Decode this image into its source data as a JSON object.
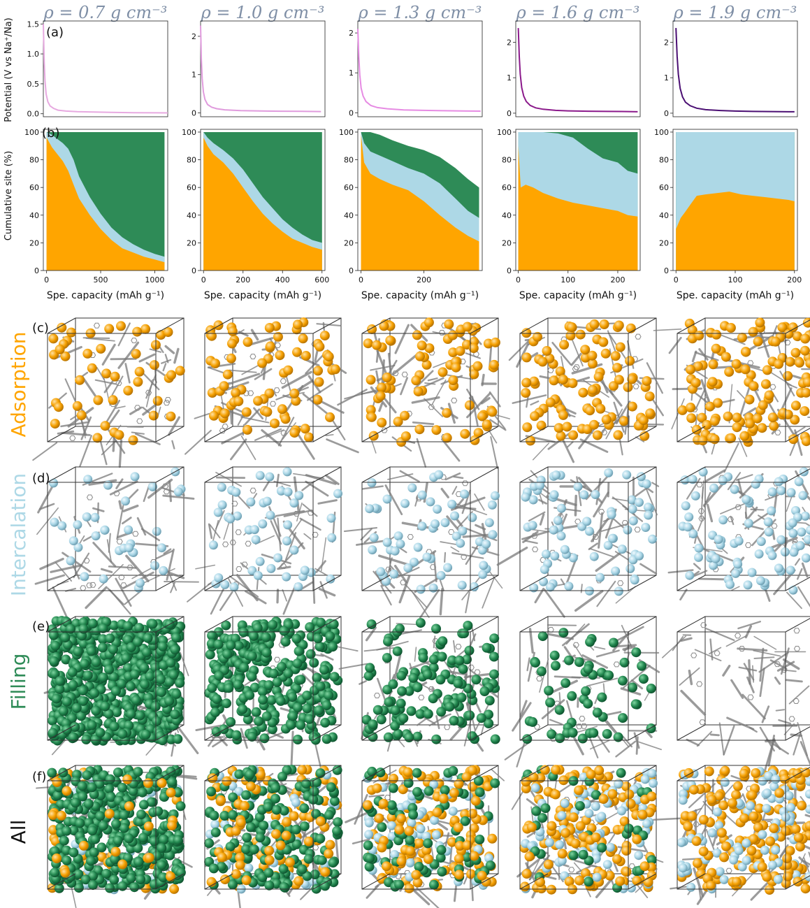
{
  "figure": {
    "density_labels": [
      "ρ = 0.7 g cm⁻³",
      "ρ = 1.0 g cm⁻³",
      "ρ = 1.3 g cm⁻³",
      "ρ = 1.6 g cm⁻³",
      "ρ = 1.9 g cm⁻³"
    ],
    "panel_letters": [
      "(a)",
      "(b)",
      "(c)",
      "(d)",
      "(e)",
      "(f)"
    ],
    "row_labels": [
      "Adsorption",
      "Intercalation",
      "Filling",
      "All"
    ],
    "colors": {
      "adsorption": "#FFA500",
      "intercalation": "#ADD8E6",
      "filling": "#2E8B57",
      "carbon": "#7a7a7a",
      "title": "#7F8FA6",
      "axis": "#222222"
    },
    "potential_colors": [
      "#E7A9E0",
      "#E09BDD",
      "#E68BE3",
      "#8B1A8B",
      "#4B0F73"
    ]
  },
  "chart_data": [
    {
      "type": "line",
      "panel": "(a)",
      "density": "0.7",
      "ylabel": "Potential (V vs Na⁺/Na)",
      "xlim": [
        0,
        1100
      ],
      "ylim": [
        -0.05,
        1.55
      ],
      "yticks": [
        "0.0",
        "0.5",
        "1.0",
        "1.5"
      ],
      "ytick_values": [
        0,
        0.5,
        1.0,
        1.5
      ],
      "x": [
        0,
        8,
        15,
        25,
        40,
        60,
        90,
        130,
        200,
        300,
        450,
        600,
        800,
        1000,
        1100
      ],
      "y": [
        1.5,
        0.85,
        0.55,
        0.33,
        0.2,
        0.13,
        0.09,
        0.06,
        0.045,
        0.035,
        0.028,
        0.022,
        0.018,
        0.015,
        0.014
      ]
    },
    {
      "type": "line",
      "panel": "(a)",
      "density": "1.0",
      "xlim": [
        0,
        620
      ],
      "ylim": [
        -0.1,
        2.4
      ],
      "yticks": [
        "0",
        "1",
        "2"
      ],
      "ytick_values": [
        0,
        1,
        2
      ],
      "x": [
        0,
        4,
        8,
        14,
        22,
        35,
        55,
        80,
        120,
        200,
        300,
        400,
        500,
        600
      ],
      "y": [
        2.28,
        1.4,
        0.9,
        0.55,
        0.35,
        0.22,
        0.15,
        0.11,
        0.08,
        0.06,
        0.05,
        0.045,
        0.04,
        0.035
      ]
    },
    {
      "type": "line",
      "panel": "(a)",
      "density": "1.3",
      "xlim": [
        0,
        380
      ],
      "ylim": [
        -0.1,
        2.3
      ],
      "yticks": [
        "0",
        "1",
        "2"
      ],
      "ytick_values": [
        0,
        1,
        2
      ],
      "x": [
        0,
        3,
        6,
        10,
        16,
        25,
        40,
        60,
        90,
        140,
        200,
        260,
        320,
        375
      ],
      "y": [
        2.1,
        1.4,
        0.95,
        0.62,
        0.42,
        0.28,
        0.18,
        0.13,
        0.1,
        0.07,
        0.06,
        0.05,
        0.045,
        0.04
      ]
    },
    {
      "type": "line",
      "panel": "(a)",
      "density": "1.6",
      "xlim": [
        -5,
        245
      ],
      "ylim": [
        -0.1,
        2.6
      ],
      "yticks": [
        "0",
        "1",
        "2"
      ],
      "ytick_values": [
        0,
        1,
        2
      ],
      "x": [
        0,
        2,
        4,
        7,
        11,
        16,
        24,
        35,
        50,
        75,
        100,
        140,
        180,
        220,
        240
      ],
      "y": [
        2.4,
        1.6,
        1.1,
        0.72,
        0.48,
        0.33,
        0.22,
        0.15,
        0.11,
        0.08,
        0.065,
        0.055,
        0.05,
        0.045,
        0.04
      ]
    },
    {
      "type": "line",
      "panel": "(a)",
      "density": "1.9",
      "xlim": [
        -5,
        205
      ],
      "ylim": [
        -0.1,
        2.6
      ],
      "yticks": [
        "0",
        "1",
        "2"
      ],
      "ytick_values": [
        0,
        1,
        2
      ],
      "x": [
        0,
        2,
        4,
        7,
        11,
        16,
        24,
        35,
        50,
        75,
        100,
        130,
        160,
        190,
        200
      ],
      "y": [
        2.4,
        1.6,
        1.1,
        0.7,
        0.46,
        0.31,
        0.21,
        0.14,
        0.1,
        0.075,
        0.06,
        0.05,
        0.045,
        0.04,
        0.04
      ]
    },
    {
      "type": "area",
      "panel": "(b)",
      "density": "0.7",
      "ylabel": "Cumulative site (%)",
      "xlabel": "Spe. capacity (mAh g⁻¹)",
      "xlim": [
        -30,
        1120
      ],
      "ylim": [
        0,
        102
      ],
      "xticks": [
        "0",
        "500",
        "1000"
      ],
      "xtick_values": [
        0,
        500,
        1000
      ],
      "yticks": [
        "0",
        "20",
        "40",
        "60",
        "80",
        "100"
      ],
      "ytick_values": [
        0,
        20,
        40,
        60,
        80,
        100
      ],
      "x": [
        0,
        50,
        100,
        150,
        200,
        250,
        300,
        400,
        500,
        600,
        700,
        800,
        900,
        1000,
        1090
      ],
      "series": [
        {
          "name": "Adsorption",
          "values": [
            96,
            89,
            84,
            79,
            72,
            62,
            52,
            40,
            30,
            22,
            16,
            13,
            10,
            8,
            6
          ]
        },
        {
          "name": "Intercalation",
          "values": [
            100,
            98,
            95,
            92,
            88,
            80,
            68,
            53,
            41,
            31,
            24,
            19,
            15,
            12,
            10
          ]
        },
        {
          "name": "Filling",
          "values": [
            100,
            100,
            100,
            100,
            100,
            100,
            100,
            100,
            100,
            100,
            100,
            100,
            100,
            100,
            100
          ]
        }
      ]
    },
    {
      "type": "area",
      "panel": "(b)",
      "density": "1.0",
      "xlabel": "Spe. capacity (mAh g⁻¹)",
      "xlim": [
        -15,
        615
      ],
      "ylim": [
        0,
        102
      ],
      "xticks": [
        "0",
        "200",
        "400",
        "600"
      ],
      "xtick_values": [
        0,
        200,
        400,
        600
      ],
      "yticks": [
        "0",
        "20",
        "40",
        "60",
        "80",
        "100"
      ],
      "ytick_values": [
        0,
        20,
        40,
        60,
        80,
        100
      ],
      "x": [
        0,
        20,
        50,
        100,
        150,
        200,
        250,
        300,
        350,
        400,
        450,
        500,
        550,
        600
      ],
      "series": [
        {
          "name": "Adsorption",
          "values": [
            96,
            90,
            84,
            78,
            70,
            60,
            50,
            41,
            34,
            28,
            23,
            20,
            17,
            15
          ]
        },
        {
          "name": "Intercalation",
          "values": [
            100,
            96,
            92,
            87,
            81,
            73,
            63,
            53,
            45,
            37,
            31,
            26,
            22,
            20
          ]
        },
        {
          "name": "Filling",
          "values": [
            100,
            100,
            100,
            100,
            100,
            100,
            100,
            100,
            100,
            100,
            100,
            100,
            100,
            100
          ]
        }
      ]
    },
    {
      "type": "area",
      "panel": "(b)",
      "density": "1.3",
      "xlabel": "Spe. capacity (mAh g⁻¹)",
      "xlim": [
        -10,
        385
      ],
      "ylim": [
        0,
        102
      ],
      "xticks": [
        "0",
        "200"
      ],
      "xtick_values": [
        0,
        200
      ],
      "yticks": [
        "0",
        "20",
        "40",
        "60",
        "80",
        "100"
      ],
      "ytick_values": [
        0,
        20,
        40,
        60,
        80,
        100
      ],
      "x": [
        0,
        10,
        30,
        60,
        100,
        150,
        200,
        250,
        300,
        340,
        375
      ],
      "series": [
        {
          "name": "Adsorption",
          "values": [
            98,
            78,
            70,
            66,
            62,
            58,
            50,
            40,
            31,
            25,
            21
          ]
        },
        {
          "name": "Intercalation",
          "values": [
            100,
            92,
            86,
            83,
            79,
            74,
            70,
            63,
            52,
            43,
            38
          ]
        },
        {
          "name": "Filling",
          "values": [
            100,
            100,
            100,
            98,
            94,
            90,
            87,
            82,
            74,
            66,
            60
          ]
        }
      ]
    },
    {
      "type": "area",
      "panel": "(b)",
      "density": "1.6",
      "xlabel": "Spe. capacity (mAh g⁻¹)",
      "xlim": [
        -5,
        245
      ],
      "ylim": [
        0,
        102
      ],
      "xticks": [
        "0",
        "100",
        "200"
      ],
      "xtick_values": [
        0,
        100,
        200
      ],
      "yticks": [
        "0",
        "20",
        "40",
        "60",
        "80",
        "100"
      ],
      "ytick_values": [
        0,
        20,
        40,
        60,
        80,
        100
      ],
      "x": [
        0,
        5,
        15,
        30,
        50,
        80,
        110,
        140,
        170,
        200,
        220,
        240
      ],
      "series": [
        {
          "name": "Adsorption",
          "values": [
            90,
            60,
            62,
            60,
            56,
            52,
            49,
            47,
            45,
            43,
            40,
            39
          ]
        },
        {
          "name": "Intercalation",
          "values": [
            100,
            100,
            100,
            100,
            100,
            99,
            96,
            88,
            81,
            78,
            72,
            70
          ]
        },
        {
          "name": "Filling",
          "values": [
            100,
            100,
            100,
            100,
            100,
            100,
            100,
            100,
            100,
            100,
            100,
            100
          ]
        }
      ]
    },
    {
      "type": "area",
      "panel": "(b)",
      "density": "1.9",
      "xlabel": "Spe. capacity (mAh g⁻¹)",
      "xlim": [
        -5,
        205
      ],
      "ylim": [
        0,
        102
      ],
      "xticks": [
        "0",
        "100",
        "200"
      ],
      "xtick_values": [
        0,
        100,
        200
      ],
      "yticks": [
        "0",
        "20",
        "40",
        "60",
        "80",
        "100"
      ],
      "ytick_values": [
        0,
        20,
        40,
        60,
        80,
        100
      ],
      "x": [
        0,
        3,
        8,
        15,
        25,
        35,
        50,
        70,
        90,
        110,
        130,
        150,
        170,
        190,
        200
      ],
      "series": [
        {
          "name": "Adsorption",
          "values": [
            30,
            33,
            38,
            42,
            48,
            54,
            55,
            56,
            57,
            55,
            54,
            53,
            52,
            51,
            50
          ]
        },
        {
          "name": "Intercalation",
          "values": [
            100,
            100,
            100,
            100,
            100,
            100,
            100,
            100,
            100,
            100,
            100,
            100,
            100,
            100,
            100
          ]
        },
        {
          "name": "Filling",
          "values": [
            100,
            100,
            100,
            100,
            100,
            100,
            100,
            100,
            100,
            100,
            100,
            100,
            100,
            100,
            100
          ]
        }
      ]
    }
  ]
}
